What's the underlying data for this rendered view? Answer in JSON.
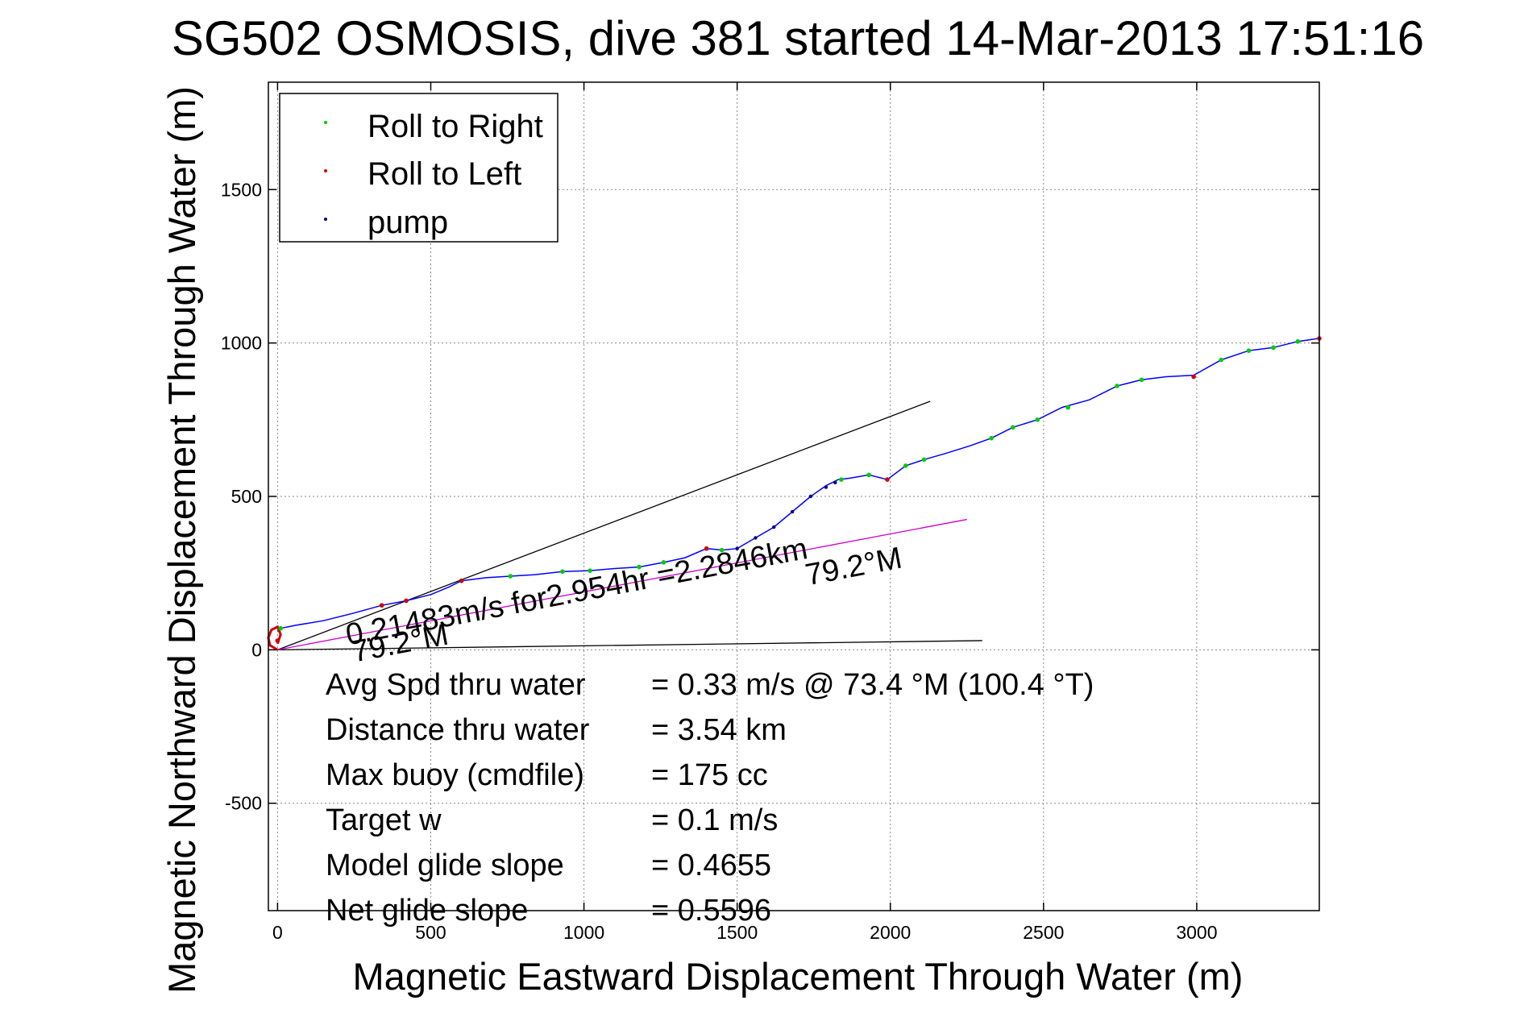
{
  "chart_data": {
    "type": "line",
    "title": "SG502 OSMOSIS, dive 381 started 14-Mar-2013 17:51:16",
    "xlabel": "Magnetic Eastward Displacement Through Water (m)",
    "ylabel": "Magnetic Northward Displacement Through Water (m)",
    "xlim": [
      -30,
      3400
    ],
    "ylim": [
      -850,
      1850
    ],
    "xticks": [
      "0",
      "500",
      "1000",
      "1500",
      "2000",
      "2500",
      "3000"
    ],
    "xtick_values": [
      0,
      500,
      1000,
      1500,
      2000,
      2500,
      3000
    ],
    "yticks": [
      "-500",
      "0",
      "500",
      "1000",
      "1500"
    ],
    "ytick_values": [
      -500,
      0,
      500,
      1000,
      1500
    ],
    "grid": true,
    "legend_position": "top-left",
    "legend": [
      "Roll to Right",
      "Roll to Left",
      "pump"
    ],
    "colors": {
      "track": "#0000ff",
      "roll_right": "#00cc00",
      "roll_left": "#cc0000",
      "pump": "#000080",
      "heading_line": "#cc00cc",
      "bound_lines": "#000000",
      "grid": "#888888"
    },
    "track": {
      "name": "",
      "x": [
        0,
        10,
        60,
        150,
        250,
        340,
        420,
        500,
        560,
        600,
        680,
        760,
        840,
        930,
        1020,
        1100,
        1180,
        1260,
        1330,
        1400,
        1450,
        1500,
        1560,
        1620,
        1680,
        1740,
        1790,
        1830,
        1870,
        1930,
        1990,
        2050,
        2110,
        2180,
        2260,
        2330,
        2400,
        2480,
        2560,
        2650,
        2740,
        2820,
        2900,
        2990,
        3080,
        3170,
        3250,
        3330,
        3400
      ],
      "y": [
        60,
        70,
        80,
        95,
        120,
        145,
        160,
        180,
        205,
        225,
        235,
        240,
        245,
        255,
        258,
        265,
        270,
        285,
        300,
        330,
        325,
        330,
        365,
        400,
        450,
        500,
        535,
        555,
        560,
        570,
        555,
        600,
        620,
        640,
        665,
        690,
        725,
        750,
        790,
        815,
        860,
        880,
        890,
        895,
        945,
        975,
        985,
        1005,
        1015
      ]
    },
    "roll_right_points": {
      "x": [
        10,
        600,
        760,
        930,
        1020,
        1180,
        1260,
        1450,
        1840,
        1930,
        2050,
        2110,
        2330,
        2400,
        2480,
        2580,
        2740,
        2820,
        3080,
        3170,
        3250,
        3330
      ],
      "y": [
        70,
        225,
        240,
        255,
        258,
        270,
        285,
        325,
        555,
        570,
        600,
        620,
        690,
        725,
        750,
        790,
        860,
        880,
        945,
        975,
        985,
        1005
      ]
    },
    "roll_left_points": {
      "x": [
        0,
        340,
        420,
        600,
        1400,
        1990,
        2990,
        3400
      ],
      "y": [
        30,
        145,
        160,
        225,
        330,
        555,
        890,
        1015
      ]
    },
    "pump_points": {
      "x": [
        1500,
        1560,
        1620,
        1680,
        1740,
        1790,
        1820,
        1840
      ],
      "y": [
        330,
        365,
        400,
        450,
        500,
        530,
        545,
        555
      ]
    },
    "start_loop": {
      "x": [
        0,
        -25,
        -30,
        -20,
        0,
        10,
        0
      ],
      "y": [
        0,
        15,
        40,
        65,
        75,
        50,
        20
      ]
    },
    "heading_line": {
      "x": [
        0,
        2250
      ],
      "y": [
        0,
        425
      ]
    },
    "upper_line": {
      "x": [
        0,
        2130
      ],
      "y": [
        0,
        810
      ]
    },
    "lower_line": {
      "x": [
        0,
        2300
      ],
      "y": [
        0,
        30
      ]
    },
    "annotations": [
      {
        "text": "0.21483m/s for2.954hr =2.2846km",
        "x": 230,
        "y": 15
      },
      {
        "text": "79.2°M",
        "x": 250,
        "y": -40
      },
      {
        "text": "79.2°M",
        "x": 1730,
        "y": 210
      }
    ],
    "stats": [
      {
        "label": "Avg Spd thru water",
        "value": "=  0.33 m/s @  73.4 °M (100.4 °T)"
      },
      {
        "label": "Distance thru water",
        "value": "=  3.54 km"
      },
      {
        "label": "Max buoy (cmdfile)",
        "value": "= 175 cc"
      },
      {
        "label": "Target w",
        "value": "= 0.1 m/s"
      },
      {
        "label": "Model glide slope",
        "value": "= 0.4655"
      },
      {
        "label": "Net glide slope",
        "value": "= 0.5596"
      }
    ]
  }
}
